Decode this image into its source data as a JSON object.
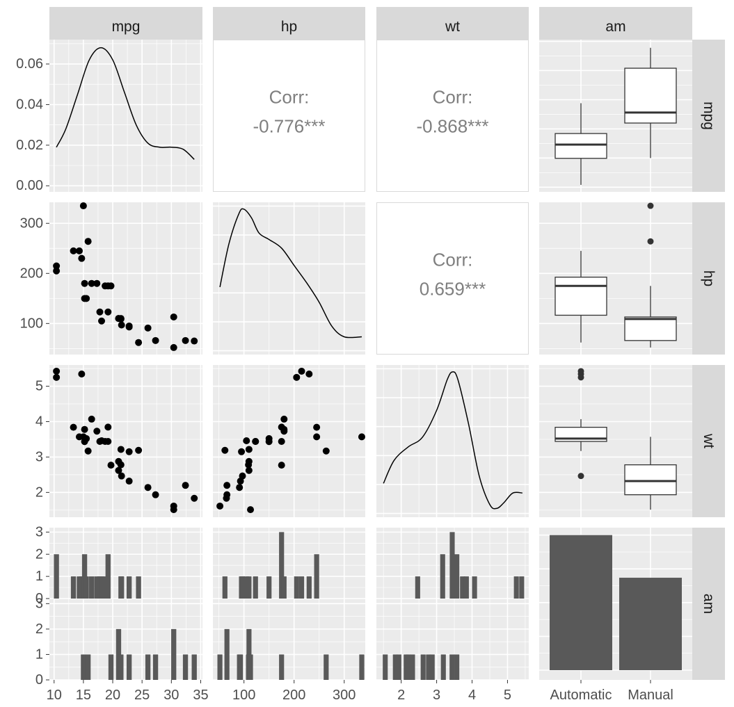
{
  "chart_data": {
    "type": "pairs",
    "variables": [
      "mpg",
      "hp",
      "wt",
      "am"
    ],
    "colors": {
      "panel_bg": "#ebebeb",
      "strip_bg": "#d9d9d9",
      "grid_major": "#ffffff",
      "bar": "#595959",
      "point": "#000000",
      "corr_text": "#7f7f7f"
    },
    "scales": {
      "mpg": {
        "range": [
          9.2,
          35.3
        ],
        "ticks": [
          10,
          15,
          20,
          25,
          30,
          35
        ],
        "labels": [
          "10",
          "15",
          "20",
          "25",
          "30",
          "35"
        ]
      },
      "hp": {
        "range": [
          38,
          342
        ],
        "ticks": [
          100,
          200,
          300
        ],
        "labels": [
          "100",
          "200",
          "300"
        ]
      },
      "wt": {
        "range": [
          1.3,
          5.6
        ],
        "ticks": [
          2,
          3,
          4,
          5
        ],
        "labels": [
          "2",
          "3",
          "4",
          "5"
        ]
      },
      "am": {
        "categories": [
          "Automatic",
          "Manual"
        ]
      }
    },
    "diag_density": {
      "mpg": {
        "ylim": [
          -0.003,
          0.072
        ],
        "yticks": [
          0,
          0.02,
          0.04,
          0.06
        ],
        "ytick_labels": [
          "0.00",
          "0.02",
          "0.04",
          "0.06"
        ],
        "points": [
          [
            10.4,
            0.019
          ],
          [
            12,
            0.028
          ],
          [
            14,
            0.045
          ],
          [
            16,
            0.062
          ],
          [
            18,
            0.068
          ],
          [
            20,
            0.062
          ],
          [
            22,
            0.046
          ],
          [
            24,
            0.03
          ],
          [
            26,
            0.021
          ],
          [
            28,
            0.019
          ],
          [
            30,
            0.019
          ],
          [
            32,
            0.018
          ],
          [
            33.9,
            0.013
          ]
        ]
      },
      "hp": {
        "points": [
          [
            52,
            0.0028
          ],
          [
            70,
            0.0048
          ],
          [
            90,
            0.0062
          ],
          [
            100,
            0.0064
          ],
          [
            115,
            0.006
          ],
          [
            130,
            0.0053
          ],
          [
            150,
            0.005
          ],
          [
            175,
            0.0046
          ],
          [
            200,
            0.0038
          ],
          [
            225,
            0.003
          ],
          [
            250,
            0.0021
          ],
          [
            275,
            0.001
          ],
          [
            300,
            0.0005
          ],
          [
            335,
            0.0005
          ]
        ]
      },
      "wt": {
        "points": [
          [
            1.5,
            0.14
          ],
          [
            1.8,
            0.26
          ],
          [
            2.2,
            0.33
          ],
          [
            2.6,
            0.38
          ],
          [
            3.0,
            0.52
          ],
          [
            3.3,
            0.68
          ],
          [
            3.45,
            0.72
          ],
          [
            3.6,
            0.68
          ],
          [
            3.9,
            0.45
          ],
          [
            4.2,
            0.18
          ],
          [
            4.5,
            0.03
          ],
          [
            4.7,
            0.01
          ],
          [
            4.9,
            0.04
          ],
          [
            5.15,
            0.09
          ],
          [
            5.42,
            0.09
          ]
        ]
      }
    },
    "correlations": [
      {
        "row": "mpg",
        "col": "hp",
        "label": "Corr:",
        "value": "-0.776***"
      },
      {
        "row": "mpg",
        "col": "wt",
        "label": "Corr:",
        "value": "-0.868***"
      },
      {
        "row": "hp",
        "col": "wt",
        "label": "Corr:",
        "value": "0.659***"
      }
    ],
    "points": {
      "mpg": [
        21,
        21,
        22.8,
        21.4,
        18.7,
        18.1,
        14.3,
        24.4,
        22.8,
        19.2,
        17.8,
        16.4,
        17.3,
        15.2,
        10.4,
        10.4,
        14.7,
        32.4,
        30.4,
        33.9,
        21.5,
        15.5,
        15.2,
        13.3,
        19.2,
        27.3,
        26,
        30.4,
        15.8,
        19.7,
        15,
        21.4
      ],
      "hp": [
        110,
        110,
        93,
        110,
        175,
        105,
        245,
        62,
        95,
        123,
        123,
        180,
        180,
        180,
        205,
        215,
        230,
        66,
        52,
        65,
        97,
        150,
        150,
        245,
        175,
        66,
        91,
        113,
        264,
        175,
        335,
        109
      ],
      "wt": [
        2.62,
        2.875,
        2.32,
        3.215,
        3.44,
        3.46,
        3.57,
        3.19,
        3.15,
        3.44,
        3.44,
        4.07,
        3.73,
        3.78,
        5.25,
        5.424,
        5.345,
        2.2,
        1.615,
        1.835,
        2.465,
        3.52,
        3.435,
        3.84,
        3.845,
        1.935,
        2.14,
        1.513,
        3.17,
        2.77,
        3.57,
        2.78
      ]
    },
    "histograms": {
      "ylim": [
        0,
        3.2
      ],
      "yticks": [
        0,
        1,
        2,
        3
      ],
      "ytick_labels": [
        "0",
        "1",
        "2",
        "3"
      ],
      "mpg": {
        "binwidth": 0.87,
        "Automatic": [
          [
            10.4,
            2
          ],
          [
            13.3,
            1
          ],
          [
            14.3,
            1
          ],
          [
            14.7,
            1
          ],
          [
            15.2,
            2
          ],
          [
            15.5,
            1
          ],
          [
            16.4,
            1
          ],
          [
            17.3,
            1
          ],
          [
            17.8,
            1
          ],
          [
            18.1,
            1
          ],
          [
            18.7,
            1
          ],
          [
            19.2,
            2
          ],
          [
            21.4,
            1
          ],
          [
            21.5,
            1
          ],
          [
            22.8,
            1
          ],
          [
            24.4,
            1
          ]
        ],
        "Manual": [
          [
            15.0,
            1
          ],
          [
            15.8,
            1
          ],
          [
            19.7,
            1
          ],
          [
            21.0,
            2
          ],
          [
            21.4,
            1
          ],
          [
            22.8,
            1
          ],
          [
            26.0,
            1
          ],
          [
            27.3,
            1
          ],
          [
            30.4,
            2
          ],
          [
            32.4,
            1
          ],
          [
            33.9,
            1
          ]
        ]
      },
      "hp": {
        "binwidth": 10,
        "Automatic": [
          [
            62,
            1
          ],
          [
            95,
            1
          ],
          [
            97,
            1
          ],
          [
            105,
            1
          ],
          [
            110,
            1
          ],
          [
            123,
            1
          ],
          [
            150,
            1
          ],
          [
            175,
            3
          ],
          [
            180,
            1
          ],
          [
            205,
            1
          ],
          [
            215,
            1
          ],
          [
            230,
            1
          ],
          [
            245,
            2
          ]
        ],
        "Manual": [
          [
            52,
            1
          ],
          [
            66,
            2
          ],
          [
            91,
            1
          ],
          [
            93,
            1
          ],
          [
            109,
            1
          ],
          [
            110,
            2
          ],
          [
            113,
            1
          ],
          [
            175,
            1
          ],
          [
            264,
            1
          ],
          [
            335,
            1
          ]
        ]
      },
      "wt": {
        "binwidth": 0.14,
        "Automatic": [
          [
            2.465,
            1
          ],
          [
            3.17,
            2
          ],
          [
            3.44,
            3
          ],
          [
            3.57,
            2
          ],
          [
            3.73,
            1
          ],
          [
            3.84,
            1
          ],
          [
            4.07,
            1
          ],
          [
            5.25,
            1
          ],
          [
            5.4,
            1
          ]
        ],
        "Manual": [
          [
            1.55,
            1
          ],
          [
            1.835,
            1
          ],
          [
            1.935,
            1
          ],
          [
            2.14,
            1
          ],
          [
            2.2,
            1
          ],
          [
            2.32,
            1
          ],
          [
            2.62,
            1
          ],
          [
            2.77,
            1
          ],
          [
            2.875,
            1
          ],
          [
            3.19,
            1
          ],
          [
            3.435,
            1
          ],
          [
            3.57,
            1
          ]
        ]
      }
    },
    "boxplots": {
      "mpg": [
        {
          "category": "Automatic",
          "min": 10.4,
          "q1": 14.95,
          "median": 17.3,
          "q3": 19.2,
          "max": 24.4,
          "outliers": []
        },
        {
          "category": "Manual",
          "min": 15.0,
          "q1": 21.0,
          "median": 22.8,
          "q3": 30.4,
          "max": 33.9,
          "outliers": []
        }
      ],
      "hp": [
        {
          "category": "Automatic",
          "min": 62,
          "q1": 116.5,
          "median": 175,
          "q3": 192.5,
          "max": 245,
          "outliers": []
        },
        {
          "category": "Manual",
          "min": 52,
          "q1": 66,
          "median": 109,
          "q3": 113,
          "max": 175,
          "outliers": [
            264,
            335
          ]
        }
      ],
      "wt": [
        {
          "category": "Automatic",
          "min": 3.17,
          "q1": 3.44,
          "median": 3.52,
          "q3": 3.84,
          "max": 4.07,
          "outliers": [
            2.465,
            5.25,
            5.345,
            5.424
          ]
        },
        {
          "category": "Manual",
          "min": 1.513,
          "q1": 1.935,
          "median": 2.32,
          "q3": 2.78,
          "max": 3.57,
          "outliers": []
        }
      ]
    },
    "am_counts": [
      {
        "category": "Automatic",
        "count": 19
      },
      {
        "category": "Manual",
        "count": 13
      }
    ]
  }
}
